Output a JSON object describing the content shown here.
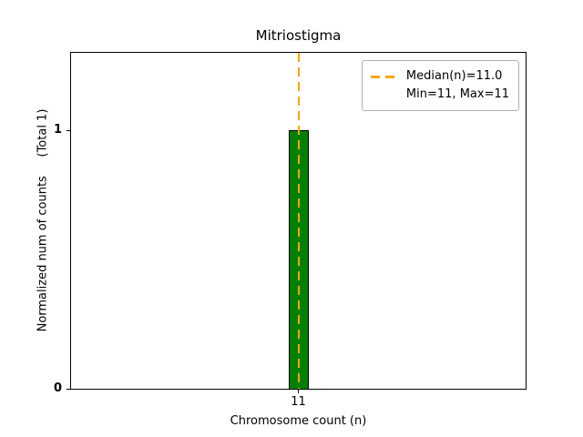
{
  "chart_data": {
    "type": "bar",
    "title": "Mitriostigma",
    "xlabel": "Chromosome count (n)",
    "ylabel": "Normalized num of counts     (Total 1)",
    "categories": [
      "11"
    ],
    "values": [
      1
    ],
    "total_counts": 1,
    "ylim": [
      0,
      1.3
    ],
    "yticks": [
      "0",
      "1"
    ],
    "xticks": [
      "11"
    ],
    "median": "11.0",
    "min": "11",
    "max": "11",
    "grid": false,
    "legend_position": "upper right",
    "legend": {
      "entries": [
        {
          "label": "Median(n)=11.0",
          "sample": "dashed-line"
        },
        {
          "label": "Min=11, Max=11",
          "sample": "none"
        }
      ]
    },
    "colors": {
      "bar_fill": "#008000",
      "bar_edge": "#000000",
      "median_line": "#ffa500",
      "axis": "#000000",
      "legend_border": "#b0b0b0"
    }
  }
}
